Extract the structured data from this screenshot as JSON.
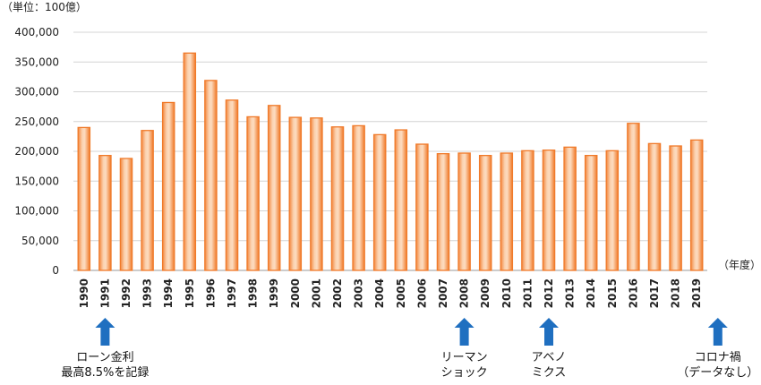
{
  "chart_data": {
    "type": "bar",
    "unit_label": "（単位：100億）",
    "xlabel": "（年度）",
    "ylim": [
      0,
      400000
    ],
    "yticks": [
      0,
      50000,
      100000,
      150000,
      200000,
      250000,
      300000,
      350000,
      400000
    ],
    "ytick_labels": [
      "0",
      "50,000",
      "100,000",
      "150,000",
      "200,000",
      "250,000",
      "300,000",
      "350,000",
      "400,000"
    ],
    "grid": true,
    "legend": "none",
    "bar_color": "#f07a2a",
    "categories": [
      "1990",
      "1991",
      "1992",
      "1993",
      "1994",
      "1995",
      "1996",
      "1997",
      "1998",
      "1999",
      "2000",
      "2001",
      "2002",
      "2003",
      "2004",
      "2005",
      "2006",
      "2007",
      "2008",
      "2009",
      "2010",
      "2011",
      "2012",
      "2013",
      "2014",
      "2015",
      "2016",
      "2017",
      "2018",
      "2019"
    ],
    "values": [
      240000,
      193000,
      188000,
      235000,
      282000,
      365000,
      319000,
      286000,
      258000,
      277000,
      257000,
      256000,
      241000,
      243000,
      228000,
      236000,
      212000,
      196000,
      197000,
      193000,
      197000,
      201000,
      202000,
      207000,
      193000,
      201000,
      247000,
      213000,
      209000,
      219000
    ]
  },
  "annotations": [
    {
      "year": "1991",
      "lines": [
        "ローン金利",
        "最高8.5%を記録"
      ],
      "arrow_color": "#1f6fc0"
    },
    {
      "year": "2008",
      "lines": [
        "リーマン",
        "ショック"
      ],
      "arrow_color": "#1f6fc0"
    },
    {
      "year": "2012",
      "lines": [
        "アベノ",
        "ミクス"
      ],
      "arrow_color": "#1f6fc0"
    },
    {
      "year": "2020",
      "lines": [
        "コロナ禍",
        "（データなし）"
      ],
      "arrow_color": "#1f6fc0"
    }
  ]
}
